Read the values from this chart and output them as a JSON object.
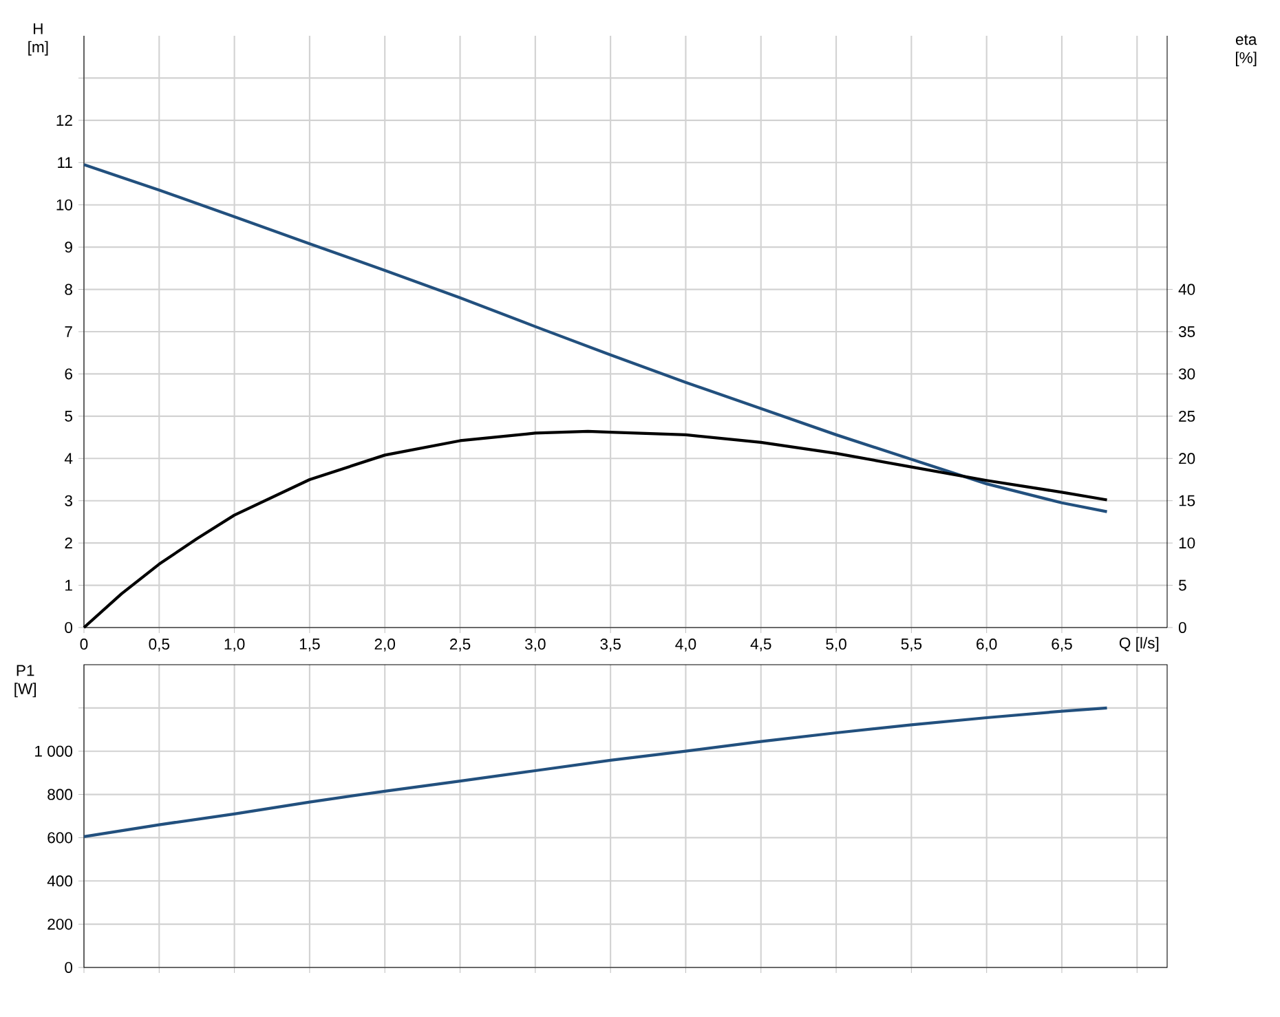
{
  "chart_data": [
    {
      "type": "line",
      "xlabel": "Q [l/s]",
      "ylabel": "H [m]",
      "y2label": "eta [%]",
      "series": [
        {
          "color": "#22507e",
          "axis": "y",
          "x": [
            0,
            0.5,
            1.0,
            1.5,
            2.0,
            2.5,
            3.0,
            3.5,
            4.0,
            4.5,
            5.0,
            5.5,
            6.0,
            6.5,
            6.8
          ],
          "values": [
            10.95,
            10.35,
            9.72,
            9.08,
            8.45,
            7.8,
            7.12,
            6.45,
            5.8,
            5.18,
            4.56,
            3.98,
            3.4,
            2.95,
            2.74
          ]
        },
        {
          "color": "#000000",
          "axis": "y2",
          "x": [
            0,
            0.25,
            0.5,
            0.75,
            1.0,
            1.5,
            2.0,
            2.5,
            3.0,
            3.35,
            3.5,
            4.0,
            4.5,
            5.0,
            5.5,
            6.0,
            6.5,
            6.8
          ],
          "values": [
            0,
            4,
            7.5,
            10.5,
            13.3,
            17.5,
            20.4,
            22.1,
            23,
            23.2,
            23.1,
            22.8,
            21.9,
            20.6,
            19.0,
            17.4,
            16.0,
            15.1
          ]
        }
      ],
      "xlim": [
        0,
        7.2
      ],
      "xticks": [
        0,
        {
          "value": 0.5,
          "label": "0,5"
        },
        {
          "value": 1.0,
          "label": "1,0"
        },
        {
          "value": 1.5,
          "label": "1,5"
        },
        {
          "value": 2.0,
          "label": "2,0"
        },
        {
          "value": 2.5,
          "label": "2,5"
        },
        {
          "value": 3.0,
          "label": "3,0"
        },
        {
          "value": 3.5,
          "label": "3,5"
        },
        {
          "value": 4.0,
          "label": "4,0"
        },
        {
          "value": 4.5,
          "label": "4,5"
        },
        {
          "value": 5.0,
          "label": "5,0"
        },
        {
          "value": 5.5,
          "label": "5,5"
        },
        {
          "value": 6.0,
          "label": "6,0"
        },
        {
          "value": 6.5,
          "label": "6,5"
        },
        {
          "value": 7.0,
          "label": null
        }
      ],
      "ylim": [
        0,
        14
      ],
      "yticks": [
        0,
        1,
        2,
        3,
        4,
        5,
        6,
        7,
        8,
        9,
        10,
        11,
        12,
        {
          "value": 13,
          "label": null
        }
      ],
      "y2lim": [
        0,
        70
      ],
      "y2ticks": [
        0,
        5,
        10,
        15,
        20,
        25,
        30,
        35,
        40
      ],
      "grid": true,
      "marker": "none"
    },
    {
      "type": "line",
      "ylabel": "P1 [W]",
      "series": [
        {
          "color": "#22507e",
          "x": [
            0,
            0.5,
            1.0,
            1.5,
            2.0,
            2.5,
            3.0,
            3.5,
            4.0,
            4.5,
            5.0,
            5.5,
            6.0,
            6.5,
            6.8
          ],
          "values": [
            605,
            660,
            710,
            765,
            815,
            862,
            910,
            958,
            1000,
            1045,
            1085,
            1122,
            1155,
            1185,
            1200
          ]
        }
      ],
      "xlim": [
        0,
        7.2
      ],
      "xticks": [
        0,
        0.5,
        1.0,
        1.5,
        2.0,
        2.5,
        3.0,
        3.5,
        4.0,
        4.5,
        5.0,
        5.5,
        6.0,
        6.5,
        7.0
      ],
      "ylim": [
        0,
        1400
      ],
      "yticks": [
        0,
        200,
        400,
        600,
        800,
        {
          "value": 1000,
          "label": "1 000"
        },
        {
          "value": 1200,
          "label": null
        }
      ],
      "grid": true,
      "marker": "none",
      "tick_labels": "y"
    }
  ]
}
